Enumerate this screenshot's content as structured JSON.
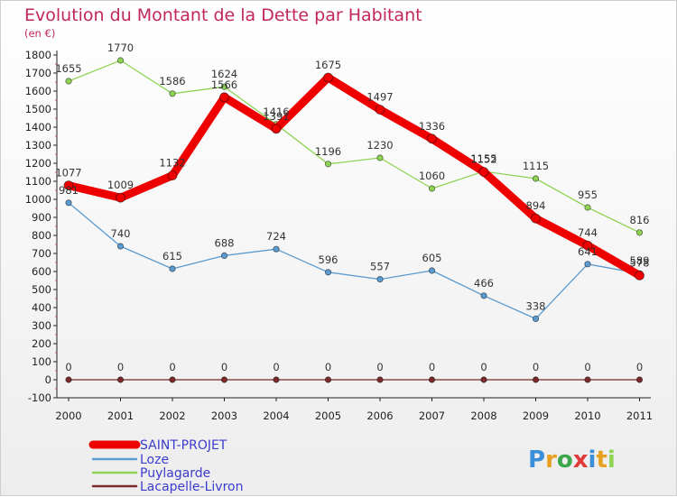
{
  "header": {
    "title": "Evolution du Montant de la Dette par Habitant",
    "unit": "(en €)"
  },
  "logo": {
    "text": "Proxiti"
  },
  "chart_data": {
    "type": "line",
    "title": "Evolution du Montant de la Dette par Habitant",
    "subtitle": "(en €)",
    "xlabel": "",
    "ylabel": "",
    "x": [
      "2000",
      "2001",
      "2002",
      "2003",
      "2004",
      "2005",
      "2006",
      "2007",
      "2008",
      "2009",
      "2010",
      "2011"
    ],
    "ylim": [
      -100,
      1800
    ],
    "yticks": [
      -100,
      0,
      100,
      200,
      300,
      400,
      500,
      600,
      700,
      800,
      900,
      1000,
      1100,
      1200,
      1300,
      1400,
      1500,
      1600,
      1700,
      1800
    ],
    "grid": false,
    "legend_position": "bottom-left",
    "series": [
      {
        "name": "SAINT-PROJET",
        "color": "#ee0000",
        "values": [
          1077,
          1009,
          1132,
          1566,
          1391,
          1675,
          1497,
          1336,
          1152,
          894,
          744,
          578
        ]
      },
      {
        "name": "Loze",
        "color": "#5b9bd0",
        "values": [
          981,
          740,
          615,
          688,
          724,
          596,
          557,
          605,
          466,
          338,
          641,
          589
        ]
      },
      {
        "name": "Puylagarde",
        "color": "#8ed454",
        "values": [
          1655,
          1770,
          1586,
          1624,
          1416,
          1196,
          1230,
          1060,
          1155,
          1115,
          955,
          816
        ]
      },
      {
        "name": "Lacapelle-Livron",
        "color": "#7b2a2a",
        "values": [
          0,
          0,
          0,
          0,
          0,
          0,
          0,
          0,
          0,
          0,
          0,
          0
        ]
      }
    ]
  }
}
